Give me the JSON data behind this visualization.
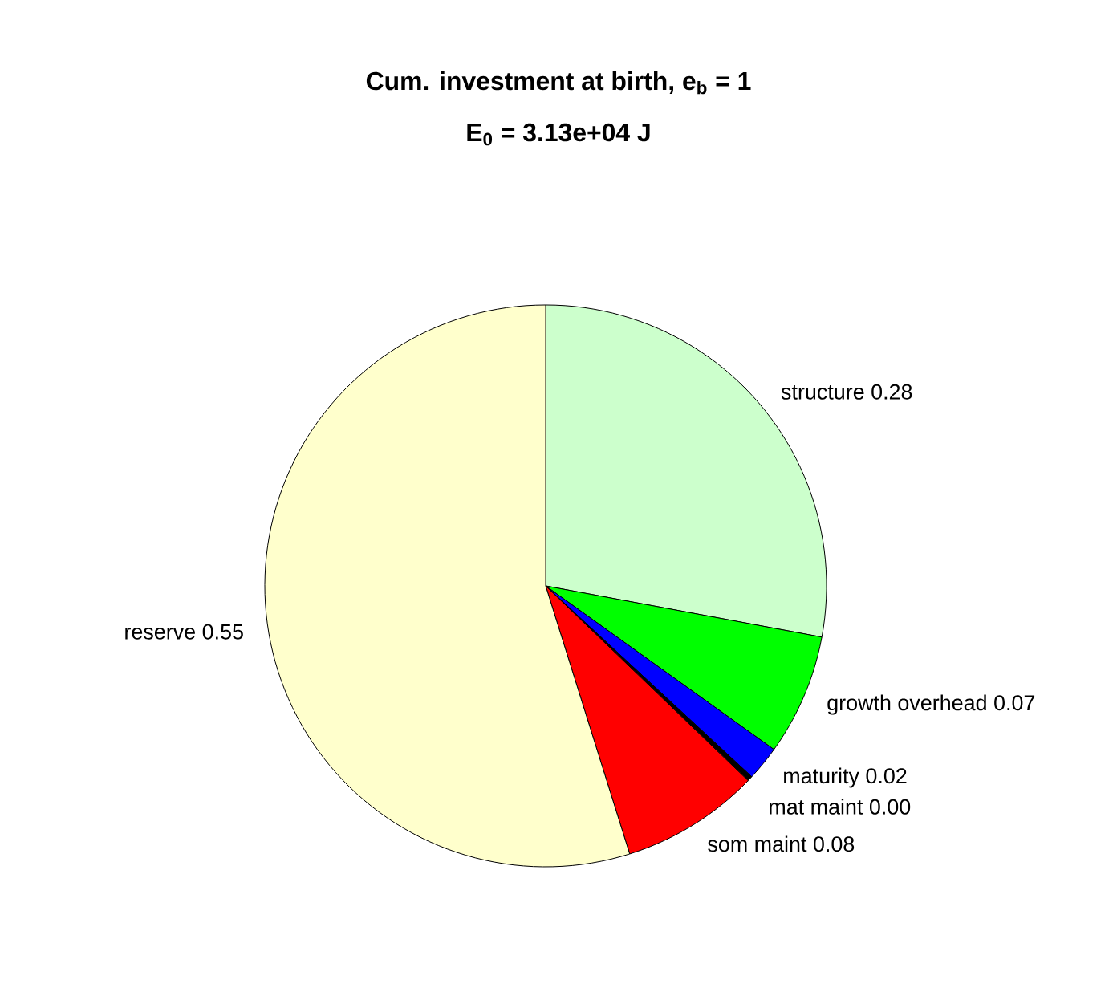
{
  "chart_data": {
    "type": "pie",
    "title": "Cum. investment at birth, e$_{b}$ = 1",
    "subtitle": "E$_{0}$ = 3.13e+04 J",
    "categories": [
      "structure",
      "growth overhead",
      "maturity",
      "mat maint",
      "som maint",
      "reserve"
    ],
    "values": [
      0.28,
      0.07,
      0.02,
      0.003,
      0.08,
      0.55
    ],
    "value_labels": [
      "0.28",
      "0.07",
      "0.02",
      "0.00",
      "0.08",
      "0.55"
    ],
    "colors": [
      "#ccffcc",
      "#00ff00",
      "#0000ff",
      "#000000",
      "#ff0000",
      "#ffffcc"
    ],
    "legend": false
  }
}
